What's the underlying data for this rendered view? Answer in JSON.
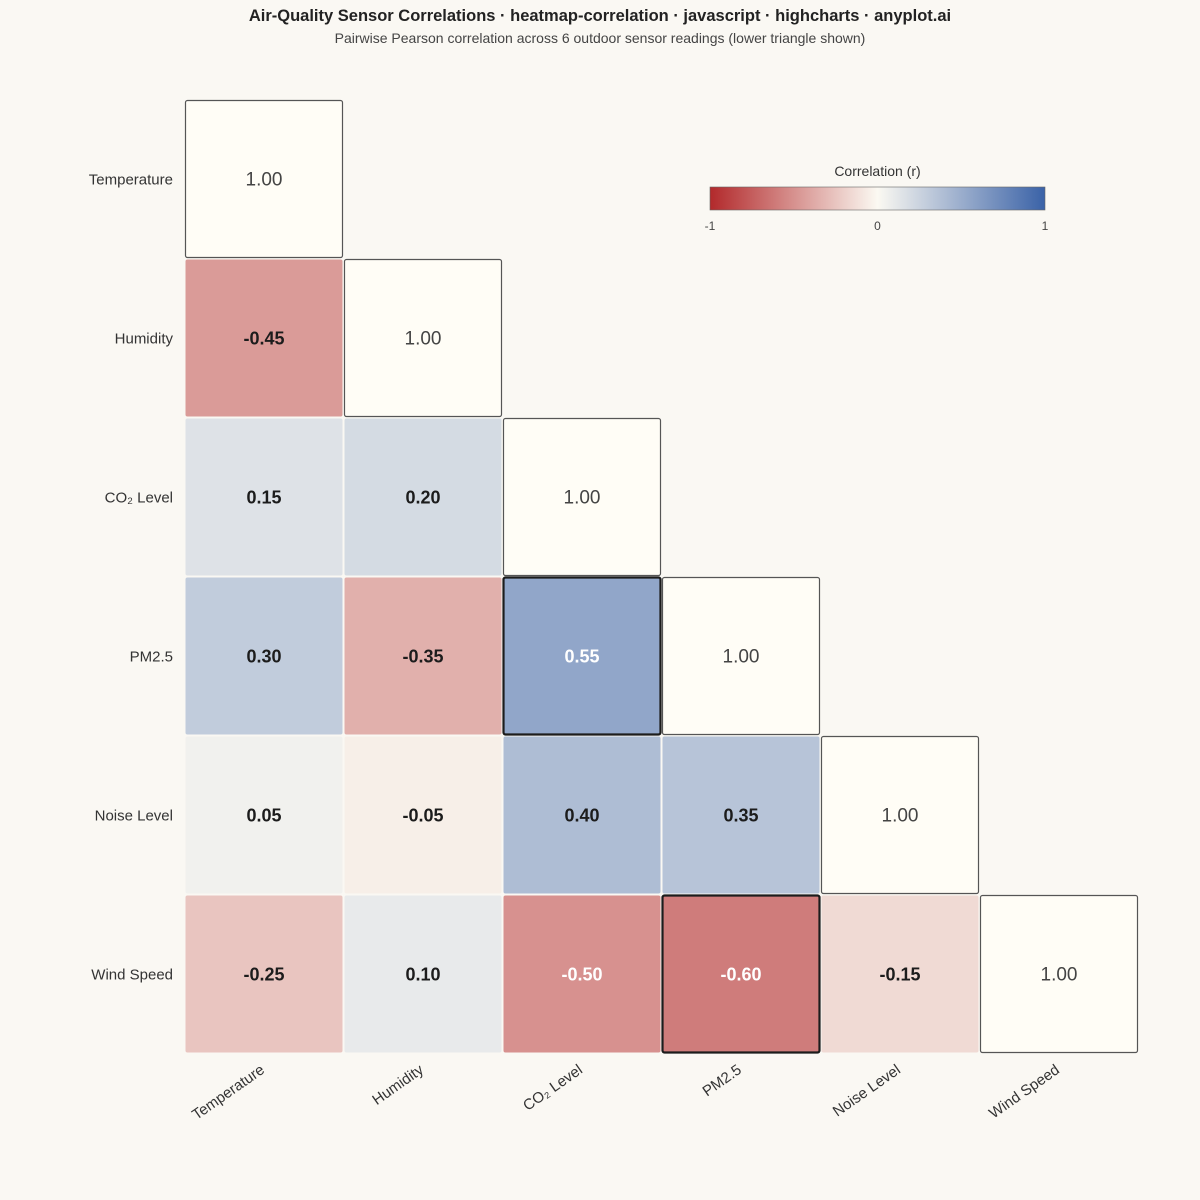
{
  "header": {
    "title": "Air-Quality Sensor Correlations · heatmap-correlation · javascript · highcharts · anyplot.ai",
    "subtitle": "Pairwise Pearson correlation across 6 outdoor sensor readings (lower triangle shown)"
  },
  "chart_data": {
    "type": "heatmap",
    "variables": [
      "Temperature",
      "Humidity",
      "CO₂ Level",
      "PM2.5",
      "Noise Level",
      "Wind Speed"
    ],
    "matrix": [
      [
        1.0,
        null,
        null,
        null,
        null,
        null
      ],
      [
        -0.45,
        1.0,
        null,
        null,
        null,
        null
      ],
      [
        0.15,
        0.2,
        1.0,
        null,
        null,
        null
      ],
      [
        0.3,
        -0.35,
        0.55,
        1.0,
        null,
        null
      ],
      [
        0.05,
        -0.05,
        0.4,
        0.35,
        1.0,
        null
      ],
      [
        -0.25,
        0.1,
        -0.5,
        -0.6,
        -0.15,
        1.0
      ]
    ],
    "highlighted_cells": [
      [
        3,
        2
      ],
      [
        5,
        3
      ]
    ],
    "value_format": "2 decimals",
    "colorbar": {
      "title": "Correlation (r)",
      "range": [
        -1,
        1
      ],
      "ticks": [
        "-1",
        "0",
        "1"
      ],
      "colors": {
        "negative": "#b2292b",
        "neutral": "#fbf9f2",
        "positive": "#3a62a7"
      },
      "placement": "top-right"
    },
    "diagonal_fill": "#fffdf6",
    "grid": false
  }
}
